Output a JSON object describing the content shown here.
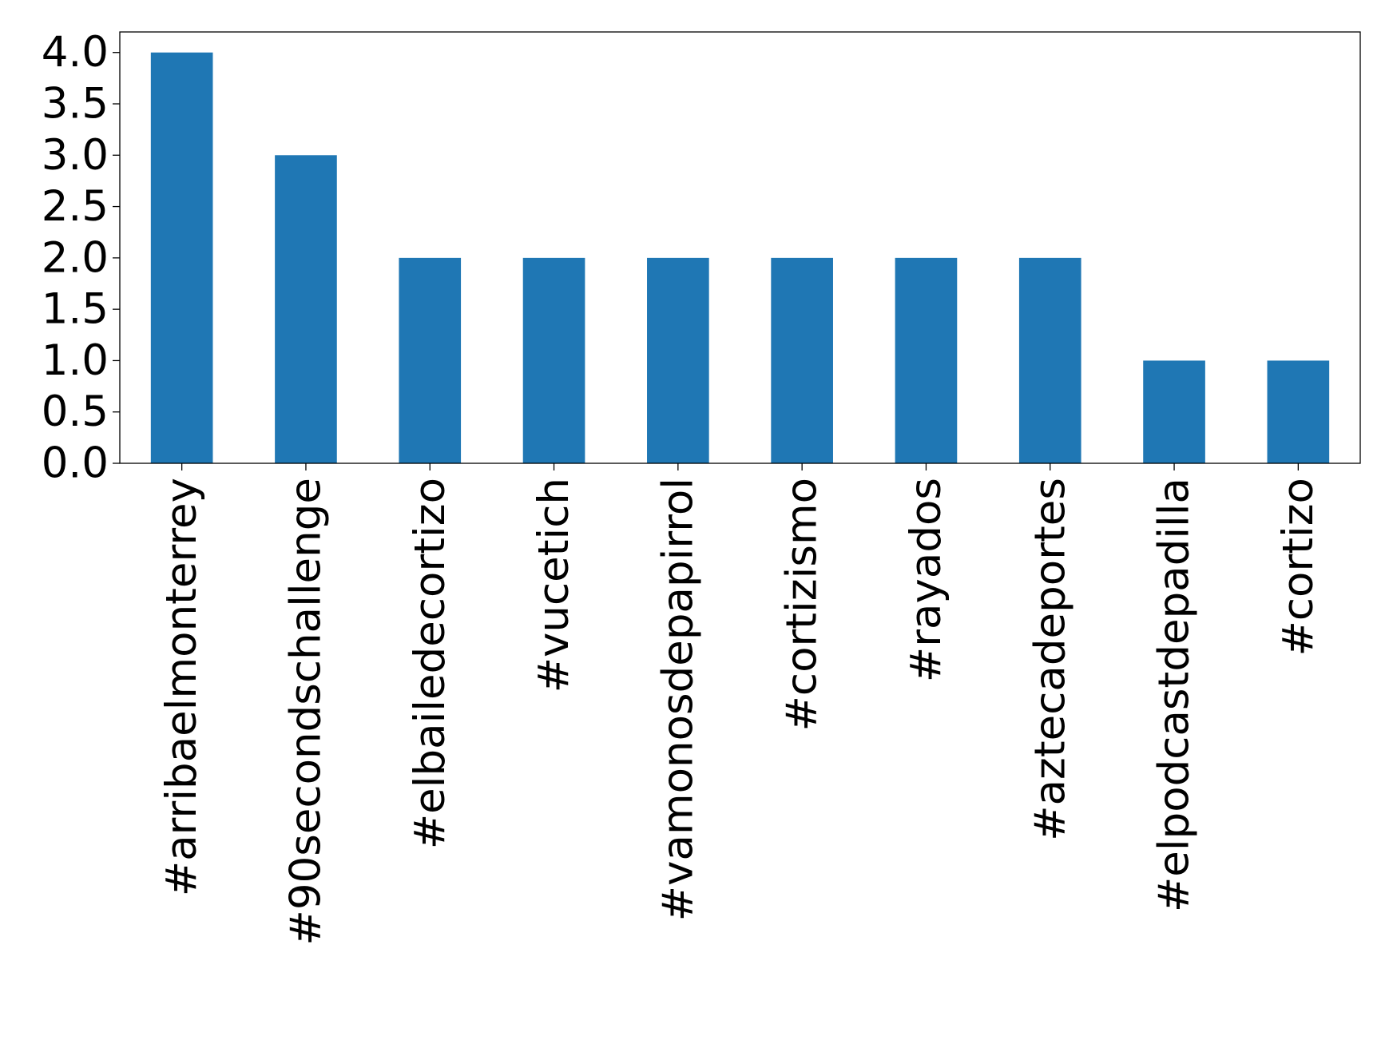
{
  "chart_data": {
    "type": "bar",
    "title": "",
    "xlabel": "",
    "ylabel": "",
    "categories": [
      "#arribaelmonterrey",
      "#90secondschallenge",
      "#elbailedecortizo",
      "#vucetich",
      "#vamonosdepapirrol",
      "#cortizismo",
      "#rayados",
      "#aztecadeportes",
      "#elpodcastdepadilla",
      "#cortizo"
    ],
    "values": [
      4,
      3,
      2,
      2,
      2,
      2,
      2,
      2,
      1,
      1
    ],
    "ylim": [
      0,
      4.2
    ],
    "yticks": [
      "0.0",
      "0.5",
      "1.0",
      "1.5",
      "2.0",
      "2.5",
      "3.0",
      "3.5",
      "4.0"
    ],
    "bar_color": "#1f77b4",
    "grid": false,
    "legend": "none"
  }
}
